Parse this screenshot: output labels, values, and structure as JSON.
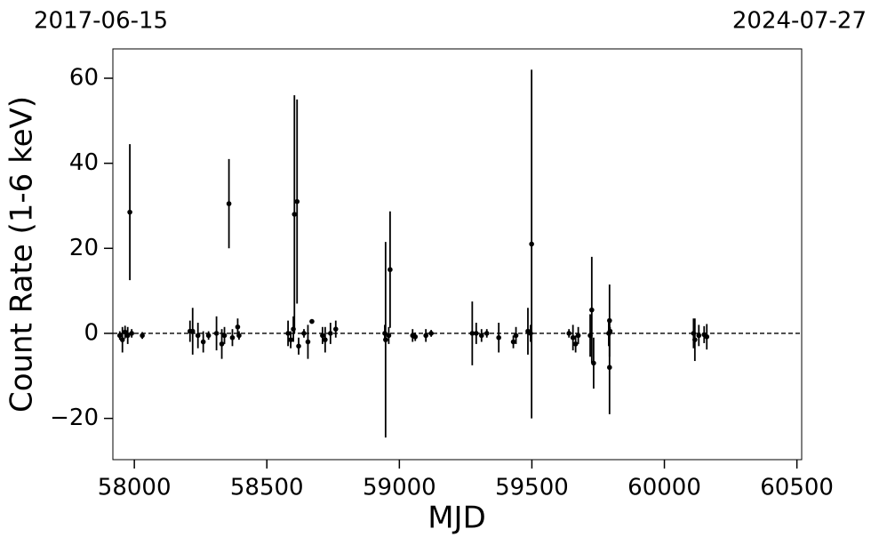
{
  "chart_data": {
    "type": "scatter",
    "x_label": "MJD",
    "y_label": "Count Rate (1-6 keV)",
    "top_labels": [
      "2017-06-15",
      "2024-07-27"
    ],
    "xlim": [
      57919,
      60518
    ],
    "ylim": [
      -29.7,
      66.9
    ],
    "xticks": [
      58000,
      58500,
      59000,
      59500,
      60000,
      60500
    ],
    "yticks": [
      {
        "value": -20,
        "label": "−20"
      },
      0,
      20,
      40,
      60
    ],
    "reference_line": 0,
    "series": [
      {
        "color": "#000000",
        "x": [
          57945,
          57955,
          57965,
          57975,
          57983,
          57990,
          58030,
          58210,
          58220,
          58240,
          58260,
          58280,
          58310,
          58330,
          58340,
          58357,
          58370,
          58390,
          58395,
          58580,
          58590,
          58600,
          58604,
          58614,
          58620,
          58640,
          58655,
          58670,
          58710,
          58720,
          58740,
          58760,
          58945,
          58948,
          58960,
          58965,
          59050,
          59060,
          59100,
          59120,
          59275,
          59290,
          59310,
          59330,
          59375,
          59430,
          59440,
          59485,
          59495,
          59499,
          59640,
          59655,
          59665,
          59675,
          59720,
          59726,
          59733,
          59790,
          59793,
          59793,
          59795,
          60110,
          60115,
          60130,
          60150,
          60160
        ],
        "values": [
          -0.5,
          -1.5,
          0.3,
          -0.5,
          28.5,
          0,
          -0.5,
          0.5,
          0.5,
          -0.5,
          -2,
          -0.5,
          0,
          -2.5,
          -0.5,
          30.5,
          -1,
          1.5,
          -0.5,
          0,
          -1.5,
          1,
          28,
          31,
          -3,
          0,
          -2,
          2.8,
          -0.5,
          -1.5,
          0,
          1,
          0,
          -1.5,
          -0.5,
          15,
          -0.5,
          -0.8,
          -0.5,
          0,
          0,
          0,
          -0.5,
          0,
          -1,
          -2,
          -0.5,
          0.5,
          0,
          21,
          0,
          -1,
          -2.5,
          -0.5,
          -0.5,
          5.5,
          -7,
          0,
          3,
          -8,
          0.5,
          0,
          -1.5,
          -0.5,
          -0.3,
          -0.8
        ],
        "errors": [
          1,
          3,
          1.5,
          2,
          16,
          1,
          0.8,
          2.5,
          5.5,
          3,
          2.5,
          1,
          4,
          3.5,
          2,
          10.5,
          2,
          2,
          1,
          3,
          2,
          3,
          28,
          24,
          2,
          1,
          4,
          0.5,
          2,
          3,
          2.5,
          2,
          2,
          23,
          2,
          13.7,
          1.5,
          1,
          1.5,
          0.8,
          7.5,
          2.5,
          1.5,
          1,
          3.5,
          1.5,
          2,
          5.5,
          2,
          41,
          1,
          3,
          2,
          2,
          5,
          12.5,
          6,
          3,
          8.5,
          11,
          1,
          3.5,
          5,
          2.5,
          2,
          3
        ]
      }
    ]
  }
}
